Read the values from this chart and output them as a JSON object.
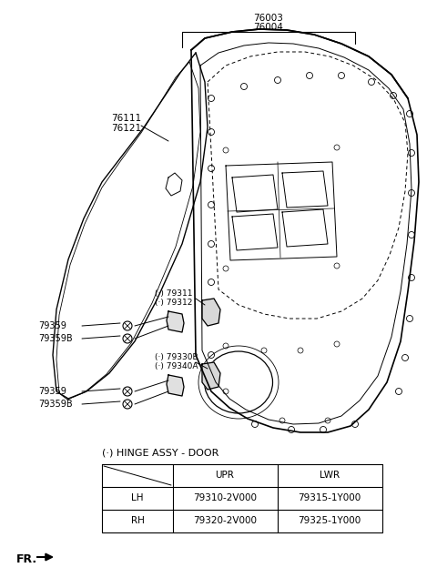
{
  "bg_color": "#ffffff",
  "line_color": "#000000",
  "text_color": "#000000",
  "table_title": "(·) HINGE ASSY - DOOR",
  "table_headers": [
    "",
    "UPR",
    "LWR"
  ],
  "table_rows": [
    [
      "LH",
      "79310-2V000",
      "79315-1Y000"
    ],
    [
      "RH",
      "79320-2V000",
      "79325-1Y000"
    ]
  ],
  "label_76003": "76003",
  "label_76004": "76004",
  "label_76111": "76111",
  "label_76121": "76121",
  "label_79311": "(·) 79311",
  "label_79312": "(·) 79312",
  "label_79330B": "(·) 79330B",
  "label_79340A": "(·) 79340A",
  "label_79359": "79359",
  "label_79359B": "79359B",
  "label_FR": "FR."
}
